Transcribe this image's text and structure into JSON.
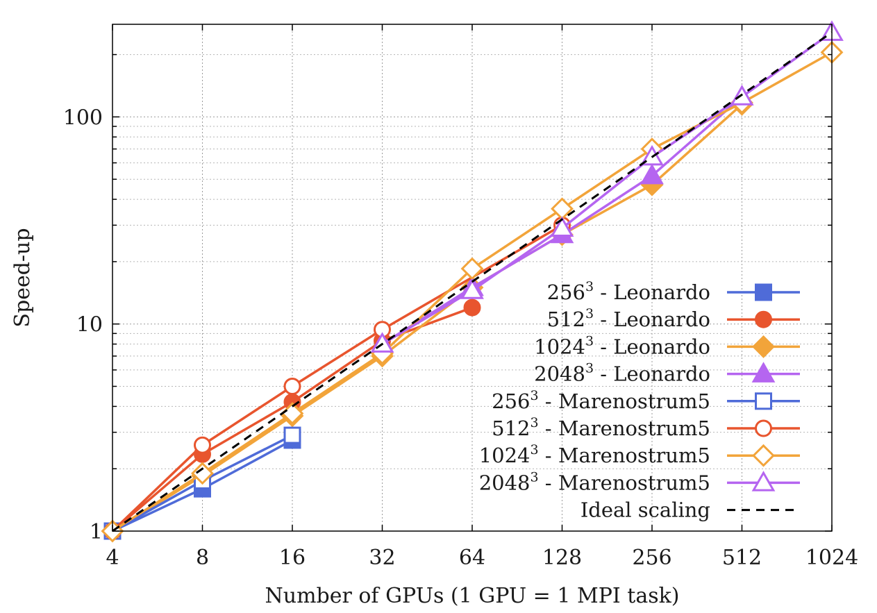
{
  "chart_data": {
    "type": "line",
    "xlabel": "Number of GPUs (1 GPU = 1 MPI task)",
    "ylabel": "Speed-up",
    "x_scale": "log2",
    "y_scale": "log10",
    "xlim": [
      4,
      1024
    ],
    "ylim": [
      1,
      280
    ],
    "x_ticks": [
      "4",
      "8",
      "16",
      "32",
      "64",
      "128",
      "256",
      "512",
      "1024"
    ],
    "y_ticks": [
      "1",
      "10",
      "100"
    ],
    "grid": true,
    "legend_position": "bottom-right",
    "series": [
      {
        "name": "256",
        "name_sup": "3",
        "name_suffix": " - Leonardo",
        "color": "#4f6bd8",
        "marker": "square",
        "filled": true,
        "x": [
          4,
          8,
          16
        ],
        "y": [
          1,
          1.6,
          2.75
        ]
      },
      {
        "name": "512",
        "name_sup": "3",
        "name_suffix": " - Leonardo",
        "color": "#e8552e",
        "marker": "circle",
        "filled": true,
        "x": [
          4,
          8,
          16,
          32,
          64
        ],
        "y": [
          1,
          2.35,
          4.2,
          8.3,
          12
        ]
      },
      {
        "name": "1024",
        "name_sup": "3",
        "name_suffix": " - Leonardo",
        "color": "#f2a43a",
        "marker": "diamond",
        "filled": true,
        "x": [
          4,
          8,
          16,
          32,
          64,
          128,
          256,
          512
        ],
        "y": [
          1,
          1.85,
          3.6,
          7,
          15,
          27,
          47,
          115
        ]
      },
      {
        "name": "2048",
        "name_sup": "3",
        "name_suffix": " - Leonardo",
        "color": "#b565f0",
        "marker": "triangle",
        "filled": true,
        "x": [
          32,
          64,
          128,
          256,
          512
        ],
        "y": [
          8,
          15,
          27,
          52,
          125
        ]
      },
      {
        "name": "256",
        "name_sup": "3",
        "name_suffix": " - Marenostrum5",
        "color": "#4f6bd8",
        "marker": "square",
        "filled": false,
        "x": [
          4,
          8,
          16
        ],
        "y": [
          1,
          1.75,
          2.9
        ]
      },
      {
        "name": "512",
        "name_sup": "3",
        "name_suffix": " - Marenostrum5",
        "color": "#e8552e",
        "marker": "circle",
        "filled": false,
        "x": [
          4,
          8,
          16,
          32,
          128
        ],
        "y": [
          1,
          2.6,
          5,
          9.4,
          30
        ]
      },
      {
        "name": "1024",
        "name_sup": "3",
        "name_suffix": " - Marenostrum5",
        "color": "#f2a43a",
        "marker": "diamond",
        "filled": false,
        "x": [
          4,
          8,
          16,
          32,
          64,
          128,
          256,
          512,
          1024
        ],
        "y": [
          1,
          1.9,
          3.7,
          7.2,
          18.5,
          36,
          70,
          117,
          205
        ]
      },
      {
        "name": "2048",
        "name_sup": "3",
        "name_suffix": " - Marenostrum5",
        "color": "#b565f0",
        "marker": "triangle",
        "filled": false,
        "x": [
          32,
          64,
          128,
          256,
          512,
          1024
        ],
        "y": [
          8,
          14.5,
          29,
          64,
          125,
          256
        ]
      },
      {
        "name": "Ideal scaling",
        "name_sup": "",
        "name_suffix": "",
        "color": "#000000",
        "marker": "none",
        "dashed": true,
        "x": [
          4,
          1024
        ],
        "y": [
          1,
          256
        ]
      }
    ]
  }
}
